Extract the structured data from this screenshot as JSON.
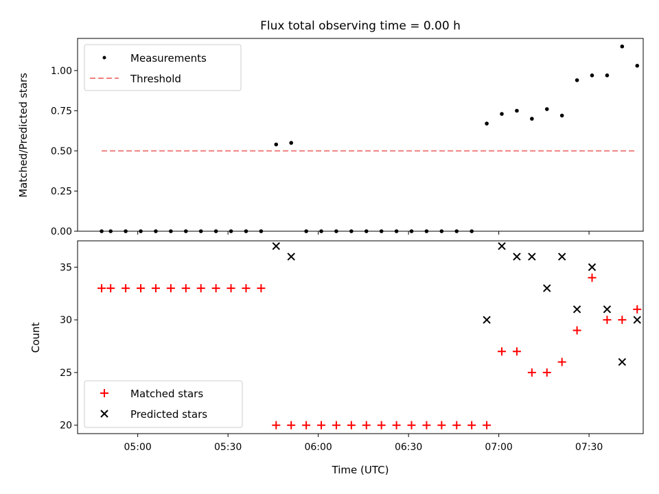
{
  "figure": {
    "title": "Flux total observing time = 0.00 h",
    "xlabel": "Time (UTC)"
  },
  "chart_data": [
    {
      "type": "scatter",
      "panel": "ratio",
      "xlabel": "",
      "ylabel": "Matched/Predicted stars",
      "xlim": [
        "04:40",
        "07:48"
      ],
      "ylim": [
        0,
        1.2
      ],
      "yticks": [
        0.0,
        0.25,
        0.5,
        0.75,
        1.0
      ],
      "ytick_labels": [
        "0.00",
        "0.25",
        "0.50",
        "0.75",
        "1.00"
      ],
      "xticks": [
        "05:00",
        "05:30",
        "06:00",
        "06:30",
        "07:00",
        "07:30"
      ],
      "legend": {
        "position": "top-left",
        "entries": [
          "Measurements",
          "Threshold"
        ]
      },
      "colors": {
        "measurements": "#000000",
        "threshold": "#f08080"
      },
      "series": [
        {
          "name": "Measurements",
          "x": [
            "04:48",
            "04:51",
            "04:56",
            "05:01",
            "05:06",
            "05:11",
            "05:16",
            "05:21",
            "05:26",
            "05:31",
            "05:36",
            "05:41",
            "05:46",
            "05:51",
            "05:56",
            "06:01",
            "06:06",
            "06:11",
            "06:16",
            "06:21",
            "06:26",
            "06:31",
            "06:36",
            "06:41",
            "06:46",
            "06:51",
            "06:56",
            "07:01",
            "07:06",
            "07:11",
            "07:16",
            "07:21",
            "07:26",
            "07:31",
            "07:36",
            "07:41",
            "07:46"
          ],
          "values": [
            0,
            0,
            0,
            0,
            0,
            0,
            0,
            0,
            0,
            0,
            0,
            0,
            0.54,
            0.55,
            0,
            0,
            0,
            0,
            0,
            0,
            0,
            0,
            0,
            0,
            0,
            0,
            0.67,
            0.73,
            0.75,
            0.7,
            0.76,
            0.72,
            0.94,
            0.97,
            0.97,
            1.15,
            1.03
          ]
        },
        {
          "name": "Threshold",
          "x": [
            "04:48",
            "07:46"
          ],
          "values": [
            0.5,
            0.5
          ]
        }
      ]
    },
    {
      "type": "scatter",
      "panel": "count",
      "xlabel": "Time (UTC)",
      "ylabel": "Count",
      "xlim": [
        "04:40",
        "07:48"
      ],
      "ylim": [
        19.2,
        37.5
      ],
      "yticks": [
        20,
        25,
        30,
        35
      ],
      "ytick_labels": [
        "20",
        "25",
        "30",
        "35"
      ],
      "xticks": [
        "05:00",
        "05:30",
        "06:00",
        "06:30",
        "07:00",
        "07:30"
      ],
      "legend": {
        "position": "bottom-left",
        "entries": [
          "Matched stars",
          "Predicted stars"
        ]
      },
      "colors": {
        "matched": "#ff0000",
        "predicted": "#000000"
      },
      "series": [
        {
          "name": "Matched stars",
          "x": [
            "04:48",
            "04:51",
            "04:56",
            "05:01",
            "05:06",
            "05:11",
            "05:16",
            "05:21",
            "05:26",
            "05:31",
            "05:36",
            "05:41",
            "05:46",
            "05:51",
            "05:56",
            "06:01",
            "06:06",
            "06:11",
            "06:16",
            "06:21",
            "06:26",
            "06:31",
            "06:36",
            "06:41",
            "06:46",
            "06:51",
            "06:56",
            "07:01",
            "07:06",
            "07:11",
            "07:16",
            "07:21",
            "07:26",
            "07:31",
            "07:36",
            "07:41",
            "07:46"
          ],
          "values": [
            33,
            33,
            33,
            33,
            33,
            33,
            33,
            33,
            33,
            33,
            33,
            33,
            20,
            20,
            20,
            20,
            20,
            20,
            20,
            20,
            20,
            20,
            20,
            20,
            20,
            20,
            20,
            27,
            27,
            25,
            25,
            26,
            29,
            34,
            30,
            30,
            31
          ]
        },
        {
          "name": "Predicted stars",
          "x": [
            "05:46",
            "05:51",
            "06:56",
            "07:01",
            "07:06",
            "07:11",
            "07:16",
            "07:21",
            "07:26",
            "07:31",
            "07:36",
            "07:41",
            "07:46"
          ],
          "values": [
            37,
            36,
            30,
            37,
            36,
            36,
            33,
            36,
            31,
            35,
            31,
            26,
            30
          ]
        }
      ]
    }
  ]
}
